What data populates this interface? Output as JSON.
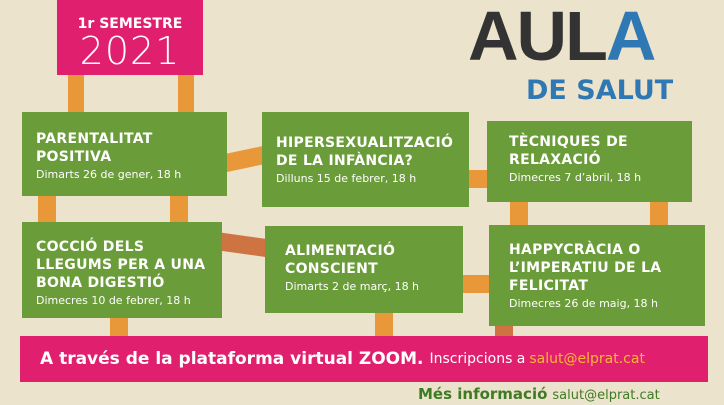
{
  "semester": {
    "label": "1r SEMESTRE",
    "year": "2021"
  },
  "logo": {
    "main": "AULA",
    "sub": "DE SALUT"
  },
  "sessions": [
    {
      "title": "PARENTALITAT POSITIVA",
      "date": "Dimarts 26 de gener, 18 h"
    },
    {
      "title": "HIPERSEXUALITZACIÓ DE LA INFÀNCIA?",
      "date": "Dilluns 15 de febrer, 18 h"
    },
    {
      "title": "TÈCNIQUES DE RELAXACIÓ",
      "date": "Dimecres 7 d’abril, 18 h"
    },
    {
      "title": "COCCIÓ DELS LLEGUMS PER A UNA BONA DIGESTIÓ",
      "date": "Dimecres 10 de febrer, 18 h"
    },
    {
      "title": "ALIMENTACIÓ CONSCIENT",
      "date": "Dimarts 2 de març, 18 h"
    },
    {
      "title": "HAPPYCRÀCIA O L’IMPERATIU DE LA FELICITAT",
      "date": "Dimecres 26 de maig, 18 h"
    }
  ],
  "banner": {
    "strong": "A través de la plataforma virtual ZOOM.",
    "text": "Inscripcions a",
    "email": "salut@elprat.cat"
  },
  "more": {
    "label": "Més informació",
    "email": "salut@elprat.cat"
  },
  "colors": {
    "pink": "#e0206e",
    "green": "#6b9c3a",
    "orange": "#e8891e",
    "blue": "#2f78b4"
  }
}
